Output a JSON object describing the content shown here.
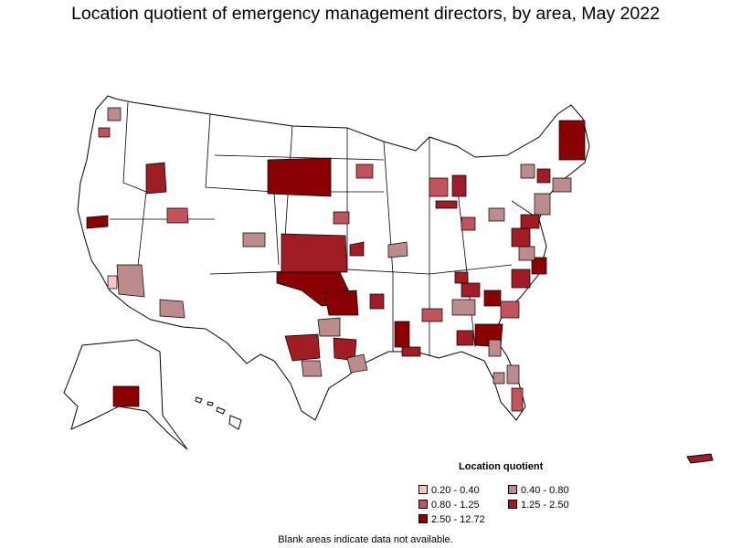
{
  "title": "Location quotient of emergency management directors, by area, May 2022",
  "legend": {
    "title": "Location quotient",
    "items": [
      {
        "label": "0.20 - 0.40",
        "color": "#f7c4c8"
      },
      {
        "label": "0.40 - 0.80",
        "color": "#bc8b8c"
      },
      {
        "label": "0.80 - 1.25",
        "color": "#c2525c"
      },
      {
        "label": "1.25 - 2.50",
        "color": "#a11d26"
      },
      {
        "label": "2.50 - 12.72",
        "color": "#8b0000"
      }
    ]
  },
  "footnote": "Blank areas indicate data not available.",
  "map_colors": {
    "background_fill": "#ffffff",
    "outline": "#000000"
  }
}
